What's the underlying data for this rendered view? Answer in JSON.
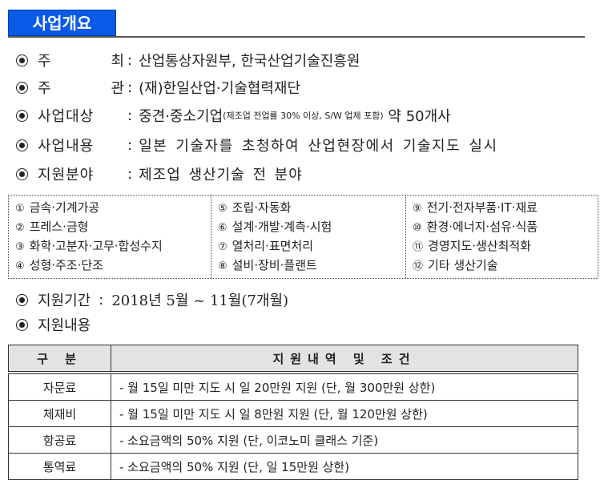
{
  "title": "사업개요",
  "items": [
    {
      "label_a": "주",
      "label_b": "최",
      "value": "산업통상자원부, 한국산업기술진흥원"
    },
    {
      "label_a": "주",
      "label_b": "관",
      "value": "(재)한일산업·기술협력재단"
    },
    {
      "label": "사업대상",
      "value": "중견·중소기업",
      "note": "(제조업 전업률 30% 이상, S/W 업체 포함)",
      "value2": " 약 50개사"
    },
    {
      "label": "사업내용",
      "value": "일본 기술자를 초청하여 산업현장에서 기술지도 실시"
    },
    {
      "label": "지원분야",
      "value": "제조업 생산기술 전 분야"
    }
  ],
  "colon": ":",
  "fields": [
    [
      {
        "n": "①",
        "t": "금속·기계가공"
      },
      {
        "n": "②",
        "t": "프레스·금형"
      },
      {
        "n": "③",
        "t": "화학·고분자·고무·합성수지"
      },
      {
        "n": "④",
        "t": "성형·주조·단조"
      }
    ],
    [
      {
        "n": "⑤",
        "t": "조립·자동화"
      },
      {
        "n": "⑥",
        "t": "설계·개발·계측·시험"
      },
      {
        "n": "⑦",
        "t": "열처리·표면처리"
      },
      {
        "n": "⑧",
        "t": "설비·장비·플랜트"
      }
    ],
    [
      {
        "n": "⑨",
        "t": "전기·전자부품·IT·재료"
      },
      {
        "n": "⑩",
        "t": "환경·에너지·섬유·식품"
      },
      {
        "n": "⑪",
        "t": "경영지도·생산최적화"
      },
      {
        "n": "⑫",
        "t": "기타 생산기술"
      }
    ]
  ],
  "period": {
    "label": "지원기간",
    "value": "2018년 5월 ~ 11월(7개월)"
  },
  "support": {
    "label": "지원내용"
  },
  "table": {
    "headers": [
      "구 분",
      "지원내역 및 조건"
    ],
    "rows": [
      [
        "자문료",
        "- 월 15일 미만 지도 시 일 20만원 지원 (단, 월 300만원 상한)"
      ],
      [
        "체재비",
        "- 월 15일 미만 지도 시 일 8만원 지원 (단, 월 120만원 상한)"
      ],
      [
        "항공료",
        "- 소요금액의 50% 지원 (단, 이코노미 클래스 기준)"
      ],
      [
        "통역료",
        "- 소요금액의 50% 지원 (단, 일 15만원 상한)"
      ]
    ]
  },
  "colors": {
    "title_bg": "#0a5ae8"
  }
}
